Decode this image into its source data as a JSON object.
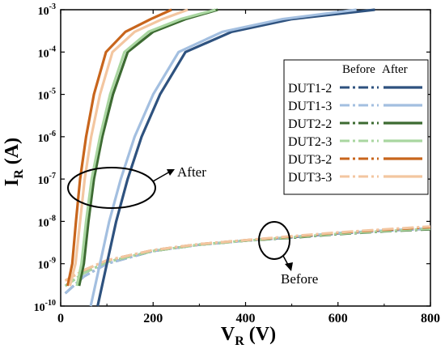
{
  "chart_data": {
    "type": "line",
    "xlabel_main": "V",
    "xlabel_sub": "R",
    "xlabel_unit": " (V)",
    "ylabel_main": "I",
    "ylabel_sub": "R",
    "ylabel_unit": " (A)",
    "xlim": [
      0,
      800
    ],
    "ylim_log10": [
      -10,
      -3
    ],
    "y_scale": "log",
    "x_ticks": [
      "0",
      "200",
      "400",
      "600",
      "800"
    ],
    "y_ticks": [
      {
        "base": "10",
        "exp": "-10"
      },
      {
        "base": "10",
        "exp": "-9"
      },
      {
        "base": "10",
        "exp": "-8"
      },
      {
        "base": "10",
        "exp": "-7"
      },
      {
        "base": "10",
        "exp": "-6"
      },
      {
        "base": "10",
        "exp": "-5"
      },
      {
        "base": "10",
        "exp": "-4"
      },
      {
        "base": "10",
        "exp": "-3"
      }
    ],
    "legend": {
      "header_before": "Before",
      "header_after": "After",
      "placement": "right"
    },
    "annotations": {
      "after": "After",
      "before": "Before"
    },
    "series": [
      {
        "name": "DUT1-2",
        "color": "#2e527f",
        "before": [
          [
            10,
            2e-10
          ],
          [
            50,
            5e-10
          ],
          [
            100,
            1e-09
          ],
          [
            200,
            2e-09
          ],
          [
            300,
            2.8e-09
          ],
          [
            400,
            3.5e-09
          ],
          [
            500,
            4.2e-09
          ],
          [
            600,
            5.2e-09
          ],
          [
            700,
            6e-09
          ],
          [
            800,
            6.8e-09
          ]
        ],
        "after": [
          [
            80,
            1e-10
          ],
          [
            100,
            1e-09
          ],
          [
            120,
            1e-08
          ],
          [
            145,
            1e-07
          ],
          [
            175,
            1e-06
          ],
          [
            215,
            1e-05
          ],
          [
            270,
            0.0001
          ],
          [
            370,
            0.0003
          ],
          [
            500,
            0.0006
          ],
          [
            680,
            0.001
          ]
        ]
      },
      {
        "name": "DUT1-3",
        "color": "#a3bfe0",
        "before": [
          [
            10,
            2e-10
          ],
          [
            50,
            5e-10
          ],
          [
            100,
            1e-09
          ],
          [
            200,
            2e-09
          ],
          [
            300,
            2.8e-09
          ],
          [
            400,
            3.5e-09
          ],
          [
            500,
            4.3e-09
          ],
          [
            600,
            5.3e-09
          ],
          [
            700,
            6.1e-09
          ],
          [
            800,
            6.9e-09
          ]
        ],
        "after": [
          [
            65,
            1e-10
          ],
          [
            85,
            1e-09
          ],
          [
            105,
            1e-08
          ],
          [
            130,
            1e-07
          ],
          [
            160,
            1e-06
          ],
          [
            200,
            1e-05
          ],
          [
            255,
            0.0001
          ],
          [
            350,
            0.0003
          ],
          [
            480,
            0.0006
          ],
          [
            640,
            0.001
          ]
        ]
      },
      {
        "name": "DUT2-2",
        "color": "#3d6b32",
        "before": [
          [
            10,
            3e-10
          ],
          [
            50,
            6e-10
          ],
          [
            100,
            1.1e-09
          ],
          [
            200,
            2e-09
          ],
          [
            300,
            2.8e-09
          ],
          [
            400,
            3.5e-09
          ],
          [
            500,
            4.1e-09
          ],
          [
            600,
            5e-09
          ],
          [
            700,
            5.8e-09
          ],
          [
            800,
            6.5e-09
          ]
        ],
        "after": [
          [
            40,
            3e-10
          ],
          [
            50,
            1e-09
          ],
          [
            60,
            1e-08
          ],
          [
            72,
            1e-07
          ],
          [
            90,
            1e-06
          ],
          [
            113,
            1e-05
          ],
          [
            145,
            0.0001
          ],
          [
            200,
            0.0003
          ],
          [
            270,
            0.0006
          ],
          [
            340,
            0.001
          ]
        ]
      },
      {
        "name": "DUT2-3",
        "color": "#a9d6a0",
        "before": [
          [
            10,
            3e-10
          ],
          [
            50,
            6e-10
          ],
          [
            100,
            1.1e-09
          ],
          [
            200,
            2e-09
          ],
          [
            300,
            2.8e-09
          ],
          [
            400,
            3.5e-09
          ],
          [
            500,
            4.2e-09
          ],
          [
            600,
            5.1e-09
          ],
          [
            700,
            5.9e-09
          ],
          [
            800,
            6.7e-09
          ]
        ],
        "after": [
          [
            35,
            3e-10
          ],
          [
            45,
            1e-09
          ],
          [
            55,
            1e-08
          ],
          [
            67,
            1e-07
          ],
          [
            85,
            1e-06
          ],
          [
            107,
            1e-05
          ],
          [
            138,
            0.0001
          ],
          [
            190,
            0.0003
          ],
          [
            260,
            0.0006
          ],
          [
            335,
            0.001
          ]
        ]
      },
      {
        "name": "DUT3-2",
        "color": "#c8651c",
        "before": [
          [
            10,
            4e-10
          ],
          [
            50,
            7e-10
          ],
          [
            100,
            1.2e-09
          ],
          [
            200,
            2.1e-09
          ],
          [
            300,
            2.9e-09
          ],
          [
            400,
            3.6e-09
          ],
          [
            500,
            4.4e-09
          ],
          [
            600,
            5.4e-09
          ],
          [
            700,
            6.3e-09
          ],
          [
            800,
            7.3e-09
          ]
        ],
        "after": [
          [
            15,
            3e-10
          ],
          [
            25,
            1e-09
          ],
          [
            33,
            1e-08
          ],
          [
            42,
            1e-07
          ],
          [
            55,
            1e-06
          ],
          [
            72,
            1e-05
          ],
          [
            98,
            0.0001
          ],
          [
            140,
            0.0003
          ],
          [
            195,
            0.0006
          ],
          [
            240,
            0.001
          ]
        ]
      },
      {
        "name": "DUT3-3",
        "color": "#f3c6a0",
        "before": [
          [
            10,
            4e-10
          ],
          [
            50,
            7e-10
          ],
          [
            100,
            1.2e-09
          ],
          [
            200,
            2.1e-09
          ],
          [
            300,
            2.9e-09
          ],
          [
            400,
            3.6e-09
          ],
          [
            500,
            4.5e-09
          ],
          [
            600,
            5.5e-09
          ],
          [
            700,
            6.5e-09
          ],
          [
            800,
            7.6e-09
          ]
        ],
        "after": [
          [
            20,
            3e-10
          ],
          [
            32,
            1e-09
          ],
          [
            42,
            1e-08
          ],
          [
            52,
            1e-07
          ],
          [
            66,
            1e-06
          ],
          [
            85,
            1e-05
          ],
          [
            112,
            0.0001
          ],
          [
            160,
            0.0003
          ],
          [
            220,
            0.0006
          ],
          [
            275,
            0.001
          ]
        ]
      }
    ]
  }
}
